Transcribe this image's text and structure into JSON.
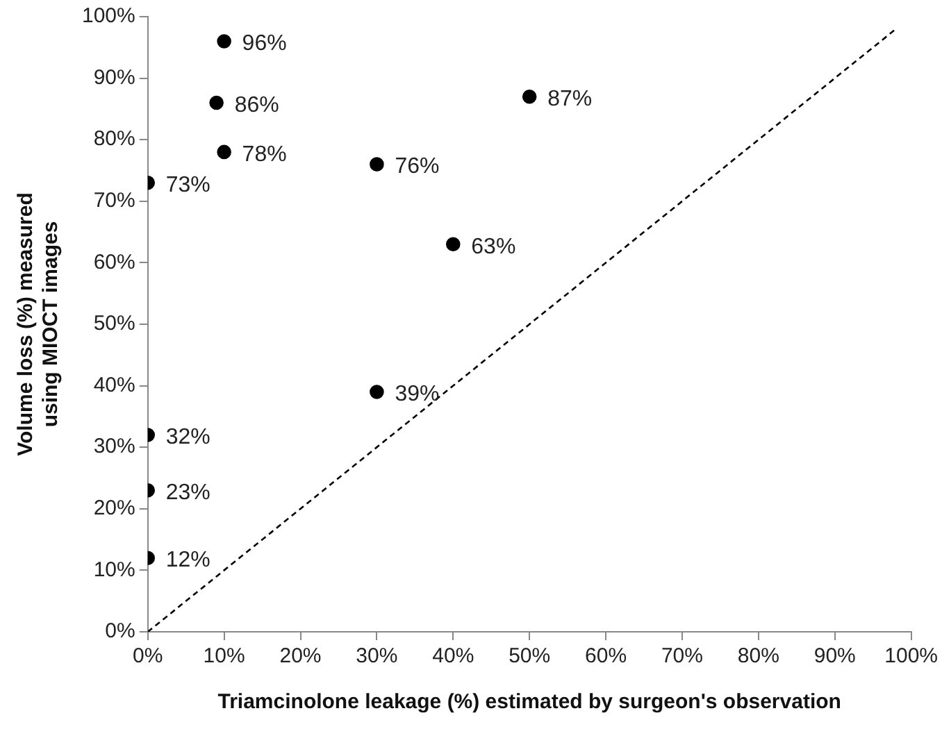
{
  "chart_data": {
    "type": "scatter",
    "xlabel": "Triamcinolone leakage (%) estimated by surgeon's observation",
    "ylabel": "Volume loss (%) measured using MIOCT images",
    "xlim": [
      0,
      100
    ],
    "ylim": [
      0,
      100
    ],
    "xticks": [
      {
        "value": 0,
        "label": "0%"
      },
      {
        "value": 10,
        "label": "10%"
      },
      {
        "value": 20,
        "label": "20%"
      },
      {
        "value": 30,
        "label": "30%"
      },
      {
        "value": 40,
        "label": "40%"
      },
      {
        "value": 50,
        "label": "50%"
      },
      {
        "value": 60,
        "label": "60%"
      },
      {
        "value": 70,
        "label": "70%"
      },
      {
        "value": 80,
        "label": "80%"
      },
      {
        "value": 90,
        "label": "90%"
      },
      {
        "value": 100,
        "label": "100%"
      }
    ],
    "yticks": [
      {
        "value": 0,
        "label": "0%"
      },
      {
        "value": 10,
        "label": "10%"
      },
      {
        "value": 20,
        "label": "20%"
      },
      {
        "value": 30,
        "label": "30%"
      },
      {
        "value": 40,
        "label": "40%"
      },
      {
        "value": 50,
        "label": "50%"
      },
      {
        "value": 60,
        "label": "60%"
      },
      {
        "value": 70,
        "label": "70%"
      },
      {
        "value": 80,
        "label": "80%"
      },
      {
        "value": 90,
        "label": "90%"
      },
      {
        "value": 100,
        "label": "100%"
      }
    ],
    "grid": false,
    "legend": false,
    "series": [
      {
        "type": "scatter",
        "color": "#000000",
        "marker": "circle",
        "x": [
          0,
          0,
          0,
          0,
          9,
          10,
          10,
          30,
          30,
          40,
          50
        ],
        "values": [
          73,
          32,
          23,
          12,
          86,
          96,
          78,
          76,
          39,
          63,
          87
        ],
        "value_labels": [
          "73%",
          "32%",
          "23%",
          "12%",
          "86%",
          "96%",
          "78%",
          "76%",
          "39%",
          "63%",
          "87%"
        ]
      },
      {
        "type": "line",
        "color": "#000000",
        "marker": "none",
        "line_style": "dashed",
        "x": [
          0,
          98
        ],
        "values": [
          0,
          98
        ]
      }
    ]
  }
}
